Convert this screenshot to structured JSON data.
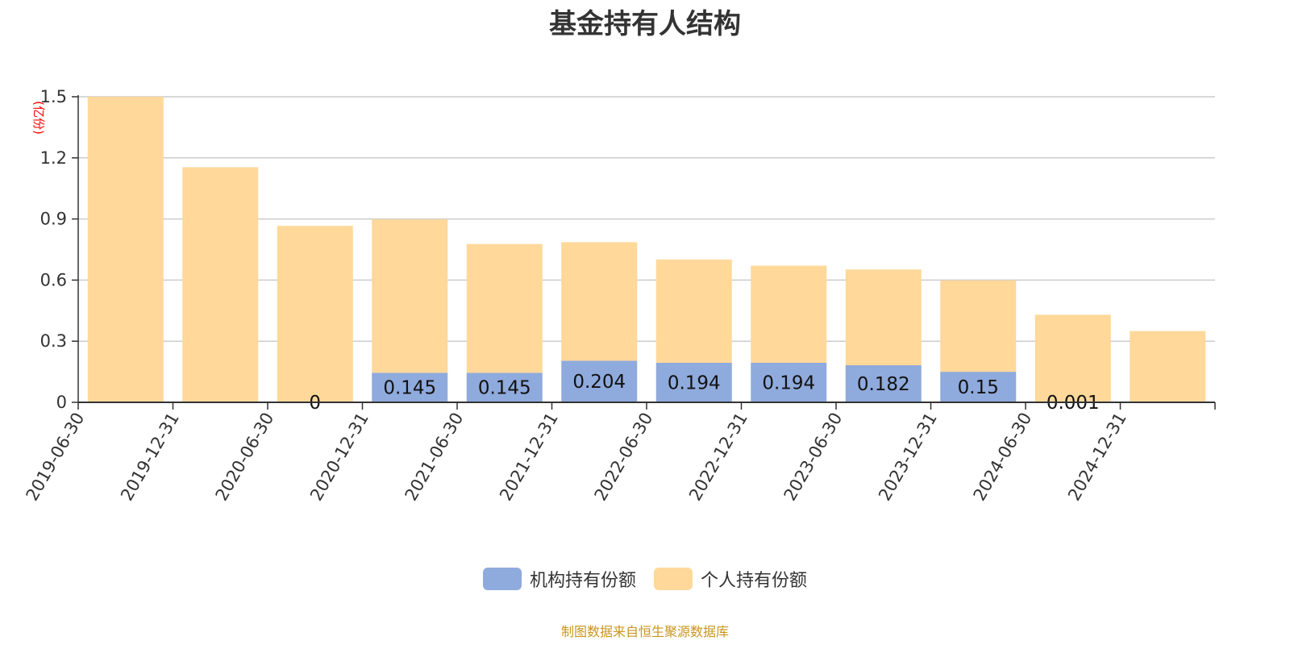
{
  "colors": {
    "institutional": "#8faadc",
    "individual": "#ffd89a",
    "unit": "#ff0000",
    "source": "#c8961e"
  },
  "chart_data": {
    "type": "bar",
    "stacked": true,
    "title": "基金持有人结构",
    "ylabel": "(亿份)",
    "ylim": [
      0,
      1.5
    ],
    "yticks": [
      0,
      0.3,
      0.6,
      0.9,
      1.2,
      1.5
    ],
    "grid": true,
    "legend_position": "bottom",
    "categories": [
      "2019-06-30",
      "2019-12-31",
      "2020-06-30",
      "2020-12-31",
      "2021-06-30",
      "2021-12-31",
      "2022-06-30",
      "2022-12-31",
      "2023-06-30",
      "2023-12-31",
      "2024-06-30",
      "2024-12-31"
    ],
    "series": [
      {
        "name": "机构持有份额",
        "values": [
          0,
          0,
          0,
          0.145,
          0.145,
          0.204,
          0.194,
          0.194,
          0.182,
          0.15,
          0.001,
          0
        ],
        "labels": [
          "",
          "",
          "0",
          "0.145",
          "0.145",
          "0.204",
          "0.194",
          "0.194",
          "0.182",
          "0.15",
          "0.001",
          ""
        ]
      },
      {
        "name": "个人持有份额",
        "values": [
          1.5,
          1.154,
          0.866,
          0.753,
          0.632,
          0.582,
          0.507,
          0.477,
          0.47,
          0.449,
          0.429,
          0.35
        ]
      }
    ]
  },
  "source": "制图数据来自恒生聚源数据库"
}
